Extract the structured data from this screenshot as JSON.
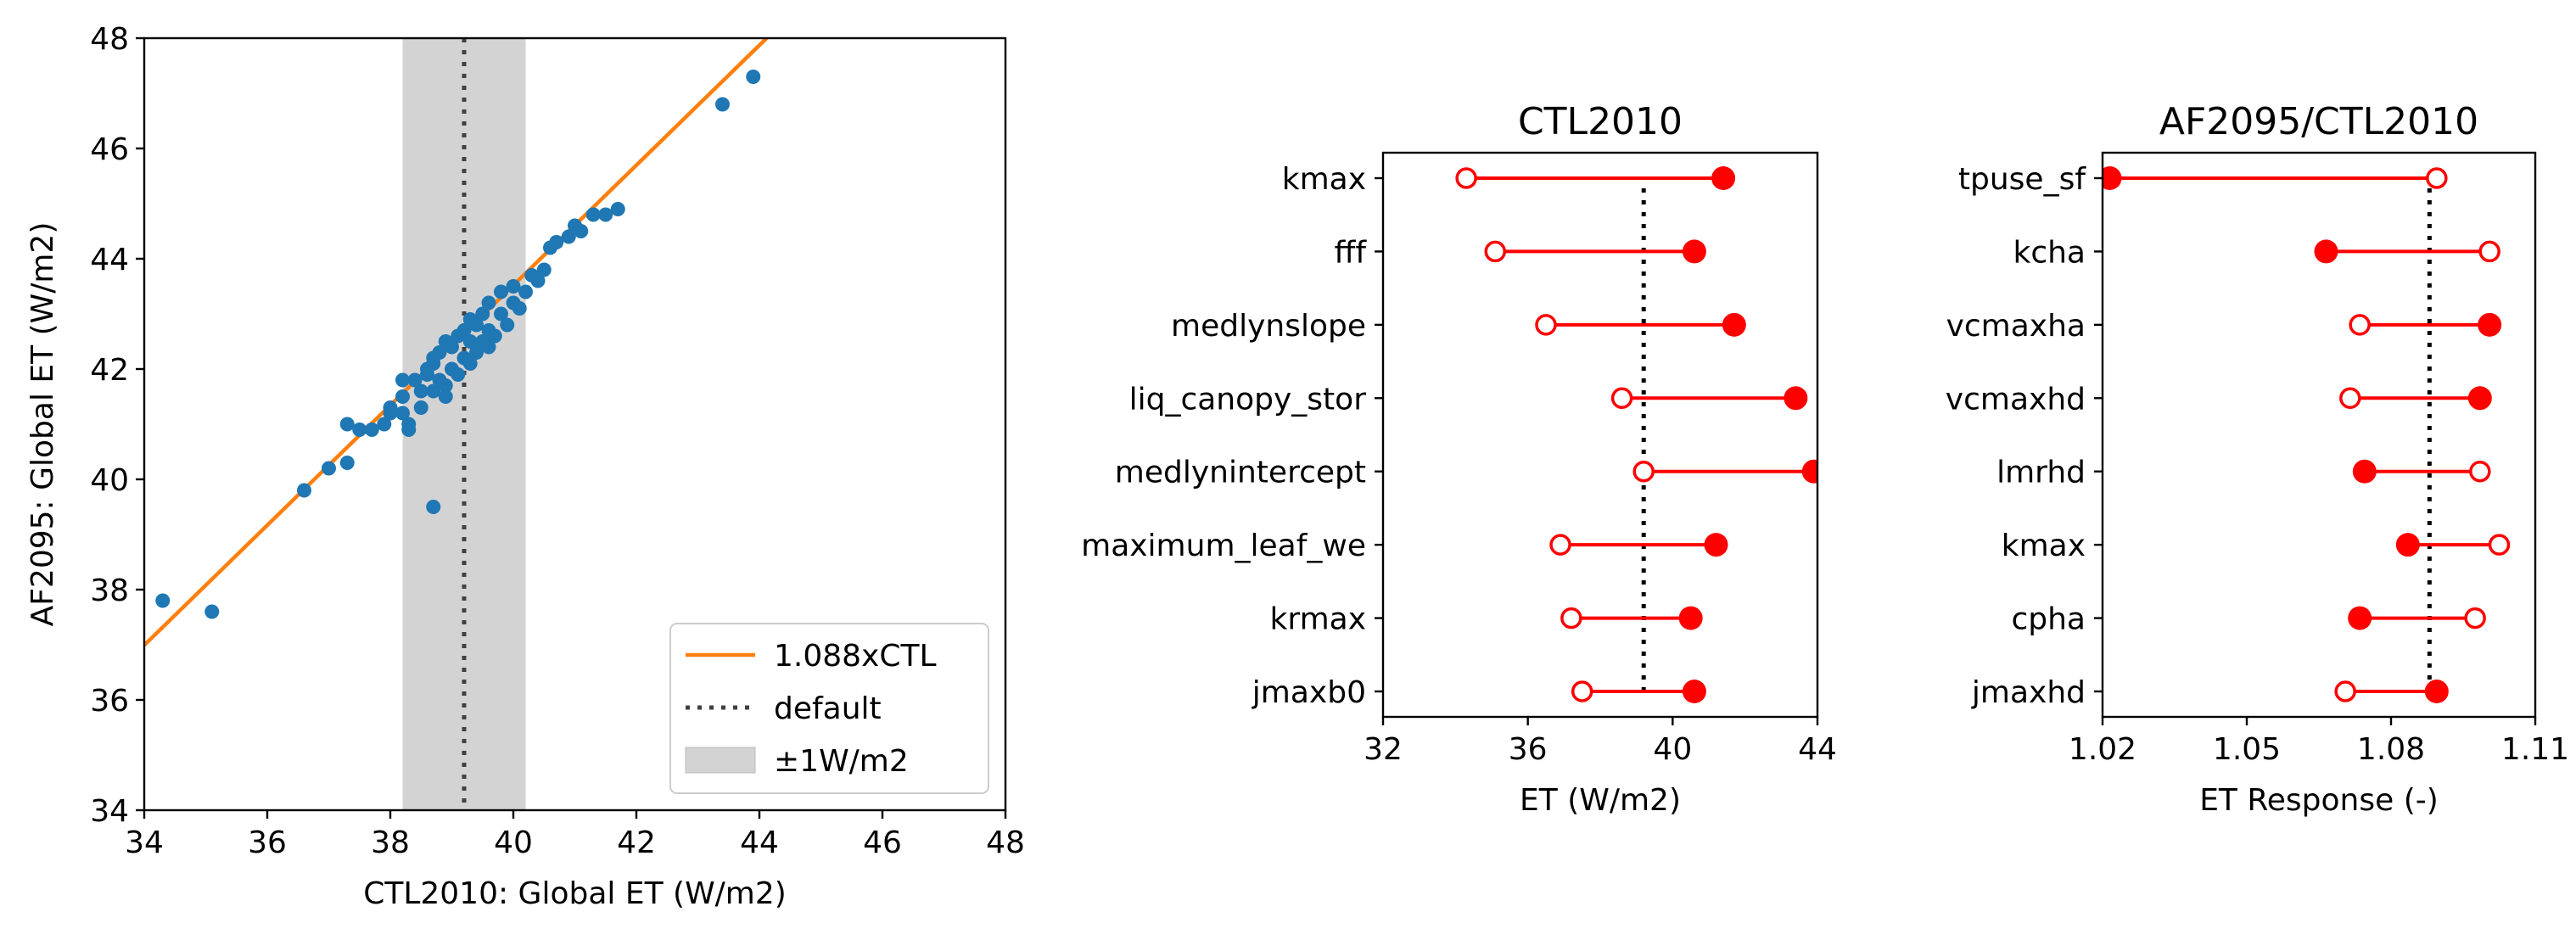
{
  "chart_data": [
    {
      "type": "scatter",
      "xlabel": "CTL2010: Global ET (W/m2)",
      "ylabel": "AF2095: Global ET (W/m2)",
      "xlim": [
        34,
        48
      ],
      "ylim": [
        34,
        48
      ],
      "xticks": [
        "34",
        "36",
        "38",
        "40",
        "42",
        "44",
        "46",
        "48"
      ],
      "yticks": [
        "34",
        "36",
        "38",
        "40",
        "42",
        "44",
        "46",
        "48"
      ],
      "points_color": "#1f77b4",
      "points": [
        [
          34.3,
          37.8
        ],
        [
          35.1,
          37.6
        ],
        [
          36.6,
          39.8
        ],
        [
          37.0,
          40.2
        ],
        [
          37.3,
          40.3
        ],
        [
          37.3,
          41.0
        ],
        [
          37.5,
          40.9
        ],
        [
          37.7,
          40.9
        ],
        [
          37.9,
          41.0
        ],
        [
          38.0,
          41.2
        ],
        [
          38.0,
          41.3
        ],
        [
          38.2,
          41.2
        ],
        [
          38.2,
          41.5
        ],
        [
          38.3,
          40.9
        ],
        [
          38.3,
          41.0
        ],
        [
          38.5,
          41.3
        ],
        [
          38.4,
          41.8
        ],
        [
          38.5,
          41.6
        ],
        [
          38.6,
          41.9
        ],
        [
          38.6,
          42.0
        ],
        [
          38.7,
          42.1
        ],
        [
          38.7,
          42.2
        ],
        [
          38.7,
          41.6
        ],
        [
          38.8,
          41.8
        ],
        [
          38.8,
          42.3
        ],
        [
          38.9,
          42.5
        ],
        [
          38.9,
          41.7
        ],
        [
          39.0,
          42.0
        ],
        [
          39.0,
          42.4
        ],
        [
          39.1,
          41.9
        ],
        [
          39.1,
          42.6
        ],
        [
          39.2,
          42.2
        ],
        [
          39.2,
          42.7
        ],
        [
          39.3,
          42.1
        ],
        [
          39.3,
          42.5
        ],
        [
          39.4,
          42.8
        ],
        [
          39.4,
          42.3
        ],
        [
          39.5,
          43.0
        ],
        [
          39.5,
          42.5
        ],
        [
          39.6,
          42.7
        ],
        [
          39.6,
          43.2
        ],
        [
          39.7,
          42.6
        ],
        [
          39.8,
          43.0
        ],
        [
          39.8,
          43.4
        ],
        [
          39.9,
          42.8
        ],
        [
          40.0,
          43.2
        ],
        [
          40.0,
          43.5
        ],
        [
          40.1,
          43.1
        ],
        [
          40.2,
          43.4
        ],
        [
          40.3,
          43.7
        ],
        [
          40.4,
          43.6
        ],
        [
          40.5,
          43.8
        ],
        [
          40.6,
          44.2
        ],
        [
          40.7,
          44.3
        ],
        [
          40.9,
          44.4
        ],
        [
          41.0,
          44.6
        ],
        [
          41.1,
          44.5
        ],
        [
          41.3,
          44.8
        ],
        [
          41.5,
          44.8
        ],
        [
          41.7,
          44.9
        ],
        [
          38.7,
          39.5
        ],
        [
          38.2,
          41.8
        ],
        [
          38.9,
          41.5
        ],
        [
          39.3,
          42.9
        ],
        [
          39.6,
          42.4
        ],
        [
          43.4,
          46.8
        ],
        [
          43.9,
          47.3
        ]
      ],
      "fit_slope": 1.088,
      "fit_color": "#ff7f0e",
      "default_x": 39.2,
      "band": [
        38.2,
        40.2
      ],
      "band_color": "#d3d3d3",
      "legend": [
        "1.088xCTL",
        "default",
        "±1W/m2"
      ],
      "legend_position": "lower-right",
      "grid": false
    },
    {
      "type": "dumbbell",
      "title": "CTL2010",
      "xlabel": "ET (W/m2)",
      "xlim": [
        32,
        44
      ],
      "xticks": [
        "32",
        "36",
        "40",
        "44"
      ],
      "reference_x": 39.2,
      "color": "#ff0000",
      "categories": [
        "kmax",
        "fff",
        "medlynslope",
        "liq_canopy_stor",
        "medlynintercept",
        "maximum_leaf_we",
        "krmax",
        "jmaxb0"
      ],
      "open_values": [
        34.3,
        35.1,
        36.5,
        38.6,
        39.2,
        36.9,
        37.2,
        37.5
      ],
      "filled_values": [
        41.4,
        40.6,
        41.7,
        43.4,
        43.9,
        41.2,
        40.5,
        40.6
      ]
    },
    {
      "type": "dumbbell",
      "title": "AF2095/CTL2010",
      "xlabel": "ET Response (-)",
      "xlim": [
        1.02,
        1.11
      ],
      "xticks": [
        "1.02",
        "1.05",
        "1.08",
        "1.11"
      ],
      "reference_x": 1.088,
      "color": "#ff0000",
      "categories": [
        "tpuse_sf",
        "kcha",
        "vcmaxha",
        "vcmaxhd",
        "lmrhd",
        "kmax",
        "cpha",
        "jmaxhd"
      ],
      "open_values": [
        1.0895,
        1.1005,
        1.0735,
        1.0715,
        1.0985,
        1.1025,
        1.0975,
        1.0705
      ],
      "filled_values": [
        1.0215,
        1.0665,
        1.1005,
        1.0985,
        1.0745,
        1.0835,
        1.0735,
        1.0895
      ]
    }
  ]
}
